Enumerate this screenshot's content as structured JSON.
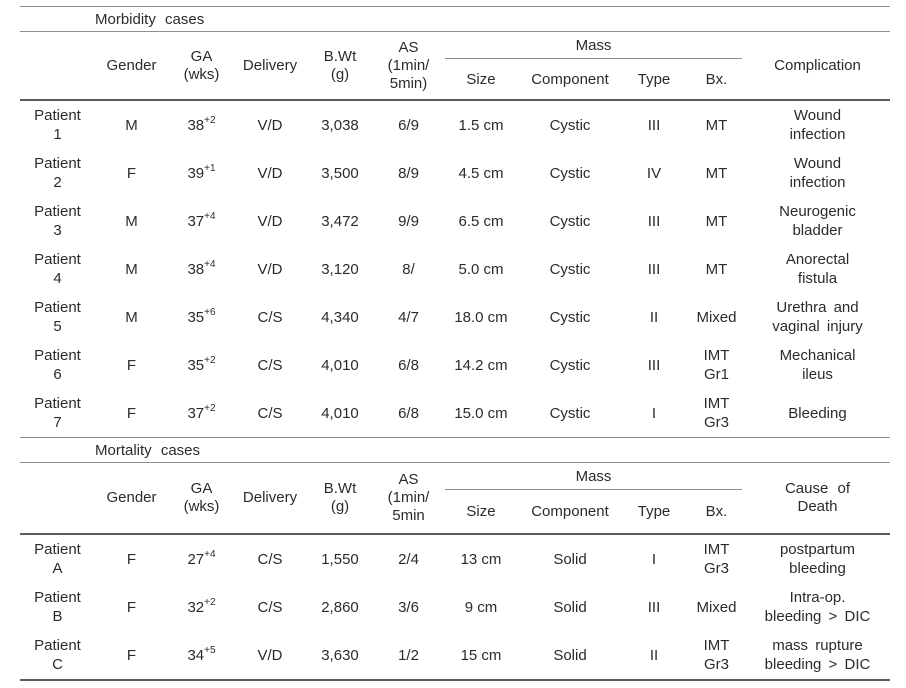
{
  "table": {
    "sections": [
      {
        "title": "Morbidity cases",
        "header": {
          "gender": "Gender",
          "ga": [
            "GA",
            "(wks)"
          ],
          "delivery": "Delivery",
          "bwt": [
            "B.Wt",
            "(g)"
          ],
          "as": [
            "AS",
            "(1min/",
            "5min)"
          ],
          "mass": "Mass",
          "size": "Size",
          "component": "Component",
          "type": "Type",
          "bx": "Bx.",
          "last": [
            "Complication"
          ]
        },
        "rows": [
          {
            "patient": [
              "Patient",
              "1"
            ],
            "gender": "M",
            "ga": {
              "main": "38",
              "sup": "+2"
            },
            "delivery": "V/D",
            "bwt": "3,038",
            "as": "6/9",
            "size": "1.5 cm",
            "component": "Cystic",
            "type": "III",
            "bx": [
              "MT"
            ],
            "outcome": [
              "Wound",
              "infection"
            ]
          },
          {
            "patient": [
              "Patient",
              "2"
            ],
            "gender": "F",
            "ga": {
              "main": "39",
              "sup": "+1"
            },
            "delivery": "V/D",
            "bwt": "3,500",
            "as": "8/9",
            "size": "4.5 cm",
            "component": "Cystic",
            "type": "IV",
            "bx": [
              "MT"
            ],
            "outcome": [
              "Wound",
              "infection"
            ]
          },
          {
            "patient": [
              "Patient",
              "3"
            ],
            "gender": "M",
            "ga": {
              "main": "37",
              "sup": "+4"
            },
            "delivery": "V/D",
            "bwt": "3,472",
            "as": "9/9",
            "size": "6.5 cm",
            "component": "Cystic",
            "type": "III",
            "bx": [
              "MT"
            ],
            "outcome": [
              "Neurogenic",
              "bladder"
            ]
          },
          {
            "patient": [
              "Patient",
              "4"
            ],
            "gender": "M",
            "ga": {
              "main": "38",
              "sup": "+4"
            },
            "delivery": "V/D",
            "bwt": "3,120",
            "as": "8/",
            "size": "5.0 cm",
            "component": "Cystic",
            "type": "III",
            "bx": [
              "MT"
            ],
            "outcome": [
              "Anorectal",
              "fistula"
            ]
          },
          {
            "patient": [
              "Patient",
              "5"
            ],
            "gender": "M",
            "ga": {
              "main": "35",
              "sup": "+6"
            },
            "delivery": "C/S",
            "bwt": "4,340",
            "as": "4/7",
            "size": "18.0 cm",
            "component": "Cystic",
            "type": "II",
            "bx": [
              "Mixed"
            ],
            "outcome": [
              "Urethra and",
              "vaginal injury"
            ]
          },
          {
            "patient": [
              "Patient",
              "6"
            ],
            "gender": "F",
            "ga": {
              "main": "35",
              "sup": "+2"
            },
            "delivery": "C/S",
            "bwt": "4,010",
            "as": "6/8",
            "size": "14.2 cm",
            "component": "Cystic",
            "type": "III",
            "bx": [
              "IMT",
              "Gr1"
            ],
            "outcome": [
              "Mechanical",
              "ileus"
            ]
          },
          {
            "patient": [
              "Patient",
              "7"
            ],
            "gender": "F",
            "ga": {
              "main": "37",
              "sup": "+2"
            },
            "delivery": "C/S",
            "bwt": "4,010",
            "as": "6/8",
            "size": "15.0 cm",
            "component": "Cystic",
            "type": "I",
            "bx": [
              "IMT",
              "Gr3"
            ],
            "outcome": [
              "Bleeding"
            ]
          }
        ]
      },
      {
        "title": "Mortality cases",
        "header": {
          "gender": "Gender",
          "ga": [
            "GA",
            "(wks)"
          ],
          "delivery": "Delivery",
          "bwt": [
            "B.Wt",
            "(g)"
          ],
          "as": [
            "AS",
            "(1min/",
            "5min"
          ],
          "mass": "Mass",
          "size": "Size",
          "component": "Component",
          "type": "Type",
          "bx": "Bx.",
          "last": [
            "Cause of",
            "Death"
          ]
        },
        "rows": [
          {
            "patient": [
              "Patient",
              "A"
            ],
            "gender": "F",
            "ga": {
              "main": "27",
              "sup": "+4"
            },
            "delivery": "C/S",
            "bwt": "1,550",
            "as": "2/4",
            "size": "13 cm",
            "component": "Solid",
            "type": "I",
            "bx": [
              "IMT",
              "Gr3"
            ],
            "outcome": [
              "postpartum",
              "bleeding"
            ]
          },
          {
            "patient": [
              "Patient",
              "B"
            ],
            "gender": "F",
            "ga": {
              "main": "32",
              "sup": "+2"
            },
            "delivery": "C/S",
            "bwt": "2,860",
            "as": "3/6",
            "size": "9 cm",
            "component": "Solid",
            "type": "III",
            "bx": [
              "Mixed"
            ],
            "outcome": [
              "Intra-op.",
              "bleeding > DIC"
            ]
          },
          {
            "patient": [
              "Patient",
              "C"
            ],
            "gender": "F",
            "ga": {
              "main": "34",
              "sup": "+5"
            },
            "delivery": "V/D",
            "bwt": "3,630",
            "as": "1/2",
            "size": "15 cm",
            "component": "Solid",
            "type": "II",
            "bx": [
              "IMT",
              "Gr3"
            ],
            "outcome": [
              "mass rupture",
              "bleeding > DIC"
            ]
          }
        ]
      }
    ]
  }
}
